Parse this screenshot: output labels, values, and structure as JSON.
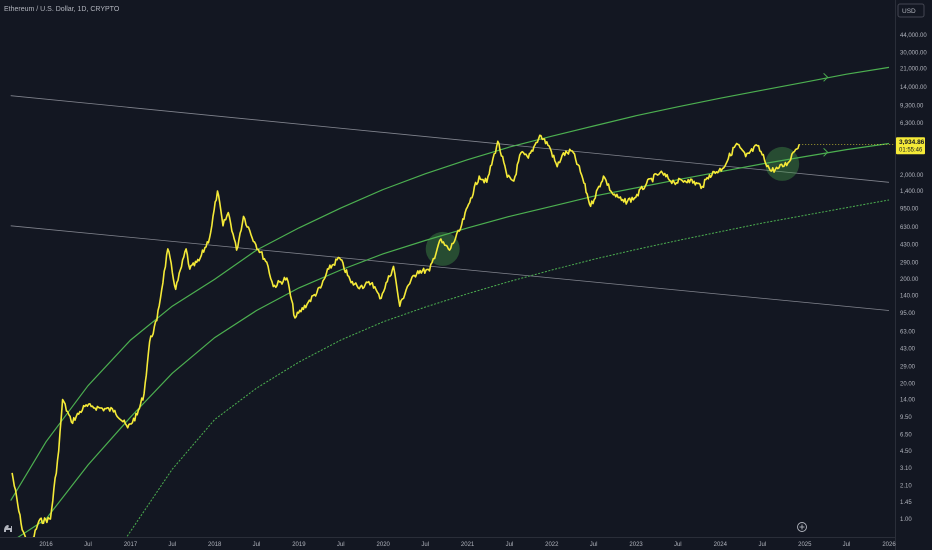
{
  "header": {
    "title": "Ethereum / U.S. Dollar, 1D, CRYPTO",
    "currency": "USD"
  },
  "price_label": {
    "price": "3,934.86",
    "countdown": "01:55:46"
  },
  "colors": {
    "background": "#131722",
    "price": "#f5ea38",
    "channel": "#4caf50",
    "trend": "#9598a1",
    "highlight": "#4caf50"
  },
  "chart_data": {
    "type": "line",
    "title": "Ethereum / U.S. Dollar, 1D, CRYPTO",
    "y_scale": "log",
    "grid": false,
    "ylim": [
      0.6,
      60000
    ],
    "x_range": [
      "2015-08-01",
      "2026-02-01"
    ],
    "y_ticks": [
      {
        "label": "44,000.00",
        "value": 44000
      },
      {
        "label": "30,000.00",
        "value": 30000
      },
      {
        "label": "21,000.00",
        "value": 21000
      },
      {
        "label": "14,000.00",
        "value": 14000
      },
      {
        "label": "9,300.00",
        "value": 9300
      },
      {
        "label": "6,300.00",
        "value": 6300
      },
      {
        "label": "4,200.00",
        "value": 4200
      },
      {
        "label": "2,000.00",
        "value": 2000
      },
      {
        "label": "1,400.00",
        "value": 1400
      },
      {
        "label": "950.00",
        "value": 950
      },
      {
        "label": "630.00",
        "value": 630
      },
      {
        "label": "430.00",
        "value": 430
      },
      {
        "label": "290.00",
        "value": 290
      },
      {
        "label": "200.00",
        "value": 200
      },
      {
        "label": "140.00",
        "value": 140
      },
      {
        "label": "95.00",
        "value": 95
      },
      {
        "label": "63.00",
        "value": 63
      },
      {
        "label": "43.00",
        "value": 43
      },
      {
        "label": "29.00",
        "value": 29
      },
      {
        "label": "20.00",
        "value": 20
      },
      {
        "label": "14.00",
        "value": 14
      },
      {
        "label": "9.50",
        "value": 9.5
      },
      {
        "label": "6.50",
        "value": 6.5
      },
      {
        "label": "4.50",
        "value": 4.5
      },
      {
        "label": "3.10",
        "value": 3.1
      },
      {
        "label": "2.10",
        "value": 2.1
      },
      {
        "label": "1.45",
        "value": 1.45
      },
      {
        "label": "1.00",
        "value": 1.0
      }
    ],
    "x_ticks": [
      {
        "label": "2016",
        "date": "2016-01-01"
      },
      {
        "label": "Jul",
        "date": "2016-07-01"
      },
      {
        "label": "2017",
        "date": "2017-01-01"
      },
      {
        "label": "Jul",
        "date": "2017-07-01"
      },
      {
        "label": "2018",
        "date": "2018-01-01"
      },
      {
        "label": "Jul",
        "date": "2018-07-01"
      },
      {
        "label": "2019",
        "date": "2019-01-01"
      },
      {
        "label": "Jul",
        "date": "2019-07-01"
      },
      {
        "label": "2020",
        "date": "2020-01-01"
      },
      {
        "label": "Jul",
        "date": "2020-07-01"
      },
      {
        "label": "2021",
        "date": "2021-01-01"
      },
      {
        "label": "Jul",
        "date": "2021-07-01"
      },
      {
        "label": "2022",
        "date": "2022-01-01"
      },
      {
        "label": "Jul",
        "date": "2022-07-01"
      },
      {
        "label": "2023",
        "date": "2023-01-01"
      },
      {
        "label": "Jul",
        "date": "2023-07-01"
      },
      {
        "label": "2024",
        "date": "2024-01-01"
      },
      {
        "label": "Jul",
        "date": "2024-07-01"
      },
      {
        "label": "2025",
        "date": "2025-01-01"
      },
      {
        "label": "Jul",
        "date": "2025-07-01"
      },
      {
        "label": "2026",
        "date": "2026-01-01"
      }
    ],
    "price_series": {
      "dates": [
        "2015-08-07",
        "2015-09-15",
        "2015-10-20",
        "2015-12-01",
        "2016-01-20",
        "2016-02-25",
        "2016-03-13",
        "2016-04-20",
        "2016-06-17",
        "2016-07-15",
        "2016-09-01",
        "2016-10-25",
        "2016-12-20",
        "2017-01-30",
        "2017-03-01",
        "2017-03-25",
        "2017-04-25",
        "2017-06-12",
        "2017-07-16",
        "2017-08-30",
        "2017-09-15",
        "2017-10-25",
        "2017-12-10",
        "2018-01-13",
        "2018-02-06",
        "2018-03-01",
        "2018-04-06",
        "2018-05-06",
        "2018-06-28",
        "2018-08-15",
        "2018-09-12",
        "2018-11-10",
        "2018-12-15",
        "2019-02-10",
        "2019-04-05",
        "2019-05-10",
        "2019-06-26",
        "2019-08-15",
        "2019-09-25",
        "2019-11-15",
        "2019-12-18",
        "2020-02-15",
        "2020-03-13",
        "2020-04-15",
        "2020-05-30",
        "2020-07-20",
        "2020-09-02",
        "2020-10-15",
        "2020-12-01",
        "2021-01-15",
        "2021-02-20",
        "2021-03-25",
        "2021-05-12",
        "2021-06-22",
        "2021-07-20",
        "2021-08-20",
        "2021-09-21",
        "2021-10-20",
        "2021-11-10",
        "2021-12-20",
        "2022-01-24",
        "2022-02-15",
        "2022-03-30",
        "2022-05-10",
        "2022-06-18",
        "2022-08-13",
        "2022-09-20",
        "2022-11-09",
        "2022-12-25",
        "2023-02-15",
        "2023-04-15",
        "2023-06-15",
        "2023-08-15",
        "2023-10-15",
        "2023-11-15",
        "2024-01-10",
        "2024-03-12",
        "2024-04-20",
        "2024-06-10",
        "2024-08-05",
        "2024-09-06",
        "2024-10-20",
        "2024-11-12",
        "2024-12-08"
      ],
      "values": [
        2.77,
        0.9,
        0.5,
        0.95,
        1.0,
        4.5,
        14.0,
        8.5,
        12.0,
        12.0,
        11.5,
        11.0,
        7.5,
        10.0,
        16.0,
        50.0,
        80.0,
        390.0,
        160.0,
        390.0,
        250.0,
        300.0,
        500.0,
        1400.0,
        650.0,
        870.0,
        380.0,
        800.0,
        430.0,
        290.0,
        170.0,
        205.0,
        85.0,
        120.0,
        165.0,
        250.0,
        320.0,
        185.0,
        170.0,
        185.0,
        130.0,
        265.0,
        110.0,
        170.0,
        240.0,
        240.0,
        470.0,
        380.0,
        610.0,
        1200.0,
        1950.0,
        1700.0,
        4200.0,
        1900.0,
        1750.0,
        3250.0,
        2900.0,
        3900.0,
        4800.0,
        3800.0,
        2400.0,
        3100.0,
        3400.0,
        2000.0,
        1000.0,
        1950.0,
        1330.0,
        1100.0,
        1200.0,
        1650.0,
        2100.0,
        1700.0,
        1800.0,
        1550.0,
        2000.0,
        2300.0,
        4000.0,
        3000.0,
        3800.0,
        2200.0,
        2300.0,
        2600.0,
        3300.0,
        3934.86
      ]
    },
    "overlays": {
      "channel_upper": {
        "dates": [
          "2015-08-01",
          "2016-01-01",
          "2016-07-01",
          "2017-01-01",
          "2017-07-01",
          "2018-01-01",
          "2018-07-01",
          "2019-01-01",
          "2019-07-01",
          "2020-01-01",
          "2020-07-01",
          "2021-01-01",
          "2021-07-01",
          "2022-01-01",
          "2022-07-01",
          "2023-01-01",
          "2023-07-01",
          "2024-01-01",
          "2024-07-01",
          "2025-01-01",
          "2025-07-01",
          "2026-01-01"
        ],
        "values": [
          1.5,
          5.5,
          19,
          52,
          110,
          200,
          380,
          620,
          960,
          1450,
          2050,
          2800,
          3700,
          4700,
          5900,
          7400,
          9000,
          10900,
          13000,
          15500,
          18500,
          21500
        ]
      },
      "channel_middle": {
        "dates": [
          "2015-08-01",
          "2016-01-01",
          "2016-07-01",
          "2017-01-01",
          "2017-07-01",
          "2018-01-01",
          "2018-07-01",
          "2019-01-01",
          "2019-07-01",
          "2020-01-01",
          "2020-07-01",
          "2021-01-01",
          "2021-07-01",
          "2022-01-01",
          "2022-07-01",
          "2023-01-01",
          "2023-07-01",
          "2024-01-01",
          "2024-07-01",
          "2025-01-01",
          "2025-07-01",
          "2026-01-01"
        ],
        "values": [
          0.6,
          1.0,
          3.3,
          9.5,
          25,
          55,
          100,
          165,
          245,
          350,
          470,
          620,
          800,
          1000,
          1250,
          1500,
          1800,
          2150,
          2550,
          3000,
          3500,
          4000
        ]
      },
      "channel_lower": {
        "dates": [
          "2016-12-01",
          "2017-07-01",
          "2018-01-01",
          "2018-07-01",
          "2019-01-01",
          "2019-07-01",
          "2020-01-01",
          "2020-07-01",
          "2021-01-01",
          "2021-07-01",
          "2022-01-01",
          "2022-07-01",
          "2023-01-01",
          "2023-07-01",
          "2024-01-01",
          "2024-07-01",
          "2025-01-01",
          "2025-07-01",
          "2026-01-01"
        ],
        "values": [
          0.6,
          3,
          9,
          18,
          32,
          52,
          78,
          108,
          145,
          190,
          245,
          310,
          385,
          470,
          570,
          690,
          820,
          970,
          1150
        ]
      },
      "trend_upper": {
        "dates": [
          "2015-08-01",
          "2026-01-01"
        ],
        "values": [
          11500,
          1700
        ]
      },
      "trend_lower": {
        "dates": [
          "2015-08-01",
          "2026-01-01"
        ],
        "values": [
          650,
          100
        ]
      },
      "highlights": [
        {
          "date": "2020-09-15",
          "value": 390
        },
        {
          "date": "2024-09-25",
          "value": 2550
        }
      ]
    }
  }
}
